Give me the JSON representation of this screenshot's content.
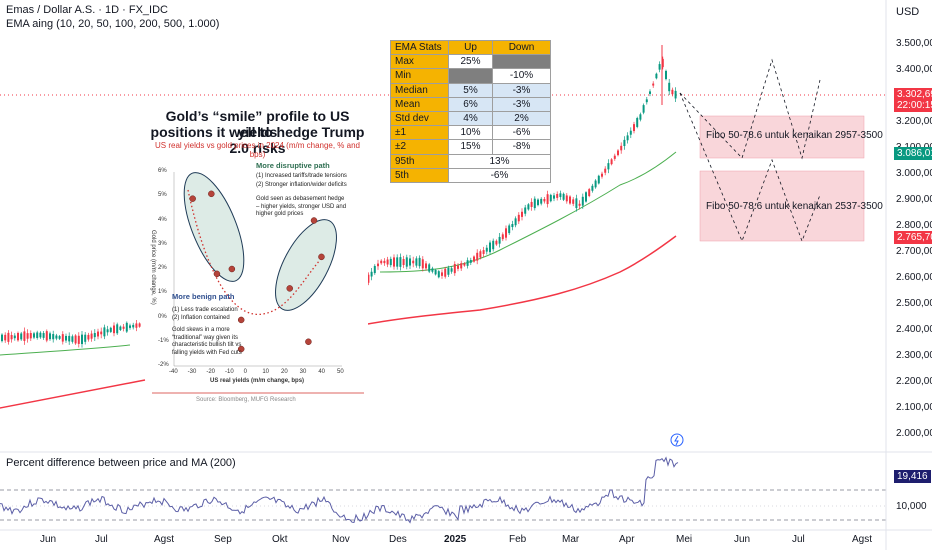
{
  "header": {
    "symbol_title": "Emas / Dollar A.S. · 1D · FX_IDC",
    "indicator": "EMA aing (10, 20, 50, 100, 200, 500, 1.000)",
    "currency": "USD"
  },
  "price_axis": {
    "ticks": [
      "3.500,000",
      "3.400,000",
      "3.300,000",
      "3.200,000",
      "3.100,000",
      "3.000,000",
      "2.900,000",
      "2.800,000",
      "2.700,000",
      "2.600,000",
      "2.500,000",
      "2.400,000",
      "2.300,000",
      "2.200,000",
      "2.100,000",
      "2.000,000"
    ],
    "last_price": "3.302,690",
    "countdown": "22:00:15",
    "ema_short_tag": "3.086,018",
    "ema_long_tag": "2.765,700",
    "colors": {
      "last_price": "#f23645",
      "ema_short": "#089981",
      "ema_long": "#f23645",
      "indicator_tag": "#1e1e6e"
    }
  },
  "stats_table": {
    "headers": [
      "EMA Stats",
      "Up",
      "Down"
    ],
    "rows": [
      {
        "label": "Max",
        "up": "25%",
        "down": ""
      },
      {
        "label": "Min",
        "up": "",
        "down": "-10%"
      },
      {
        "label": "Median",
        "up": "5%",
        "down": "-3%"
      },
      {
        "label": "Mean",
        "up": "6%",
        "down": "-3%"
      },
      {
        "label": "Std dev",
        "up": "4%",
        "down": "2%"
      },
      {
        "label": "±1",
        "up": "10%",
        "down": "-6%"
      },
      {
        "label": "±2",
        "up": "15%",
        "down": "-8%"
      },
      {
        "label": "95th",
        "merged": "13%"
      },
      {
        "label": "5th",
        "merged": "-6%"
      }
    ]
  },
  "fibo": {
    "upper": "Fibo 50-78.6 untuk kenaikan 2957-3500",
    "lower": "Fibo 50-78.6 untuk kenaikan 2537-3500"
  },
  "inset": {
    "title_line1": "Gold’s “smile” profile to US yields",
    "title_line2": "positions it well to hedge Trump 2.0 risks",
    "subtitle": "US real yields vs gold prices in 2024 (m/m change, % and bps)",
    "disruptive_head": "More disruptive path",
    "disruptive_points": [
      "(1) Increased tariffs/trade tensions",
      "(2) Stronger inflation/wider deficits"
    ],
    "disruptive_note": "Gold seen as debasement hedge – higher yields, stronger USD and higher gold prices",
    "benign_head": "More benign path",
    "benign_points": [
      "(1) Less trade escalation",
      "(2) Inflation contained"
    ],
    "benign_note": "Gold skews in a more “traditional” way given its characteristic bullish tilt vs falling yields with Fed cuts",
    "y_axis_label": "Gold price (m/m change, %)",
    "x_axis_label": "US real yields (m/m change, bps)",
    "y_ticks": [
      "6%",
      "5%",
      "4%",
      "3%",
      "2%",
      "1%",
      "0%",
      "-1%",
      "-2%"
    ],
    "x_ticks": [
      "-40",
      "-30",
      "-20",
      "-10",
      "0",
      "10",
      "20",
      "30",
      "40",
      "50"
    ],
    "source": "Source: Bloomberg, MUFG Research"
  },
  "oscillator": {
    "title": "Percent difference between price and MA (200)",
    "value_tag": "19,416",
    "tick": "10,000"
  },
  "time_axis": [
    "Jun",
    "Jul",
    "Agst",
    "Sep",
    "Okt",
    "Nov",
    "Des",
    "2025",
    "Feb",
    "Mar",
    "Apr",
    "Mei",
    "Jun",
    "Jul",
    "Agst"
  ],
  "chart_data": [
    {
      "type": "scatter",
      "title": "Gold’s “smile” profile to US yields positions it well to hedge Trump 2.0 risks",
      "subtitle": "US real yields vs gold prices in 2024 (m/m change, % and bps)",
      "xlabel": "US real yields (m/m change, bps)",
      "ylabel": "Gold price (m/m change, %)",
      "xlim": [
        -40,
        50
      ],
      "ylim": [
        -2,
        6
      ],
      "points": [
        {
          "x": -30,
          "y": 4.9
        },
        {
          "x": -20,
          "y": 5.1
        },
        {
          "x": -17,
          "y": 1.8
        },
        {
          "x": -9,
          "y": 2.0
        },
        {
          "x": -4,
          "y": -0.1
        },
        {
          "x": -4,
          "y": -1.3
        },
        {
          "x": 22,
          "y": 1.2
        },
        {
          "x": 32,
          "y": -1.0
        },
        {
          "x": 35,
          "y": 4.0
        },
        {
          "x": 39,
          "y": 2.5
        }
      ]
    }
  ]
}
